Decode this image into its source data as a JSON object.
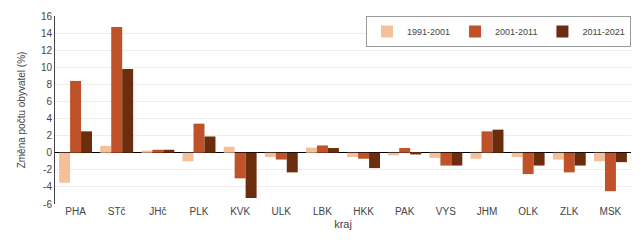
{
  "chart_data": {
    "type": "bar",
    "categories": [
      "PHA",
      "STč",
      "JHč",
      "PLK",
      "KVK",
      "ULK",
      "LBK",
      "HKK",
      "PAK",
      "VYS",
      "JHM",
      "OLK",
      "ZLK",
      "MSK"
    ],
    "series": [
      {
        "name": "1991-2001",
        "color": "#f4c09a",
        "values": [
          -3.5,
          0.8,
          0.25,
          -1.0,
          0.7,
          -0.5,
          0.6,
          -0.5,
          -0.3,
          -0.6,
          -0.7,
          -0.5,
          -0.8,
          -1.0
        ]
      },
      {
        "name": "2001-2011",
        "color": "#c0522a",
        "values": [
          8.4,
          14.7,
          0.35,
          3.4,
          -3.0,
          -0.8,
          0.85,
          -0.7,
          0.55,
          -1.5,
          2.5,
          -2.5,
          -2.3,
          -4.5
        ]
      },
      {
        "name": "2011-2021",
        "color": "#6b2d0e",
        "values": [
          2.5,
          9.8,
          0.35,
          1.9,
          -5.3,
          -2.3,
          0.55,
          -1.8,
          -0.2,
          -1.5,
          2.7,
          -1.5,
          -1.5,
          -1.1
        ]
      }
    ],
    "xlabel": "kraj",
    "ylabel": "Změna počtu obyvatel (%)",
    "ylim": [
      -6,
      16
    ],
    "yticks": [
      -6,
      -4,
      -2,
      0,
      2,
      4,
      6,
      8,
      10,
      12,
      14,
      16
    ],
    "grid": true,
    "legend": "upper right"
  }
}
